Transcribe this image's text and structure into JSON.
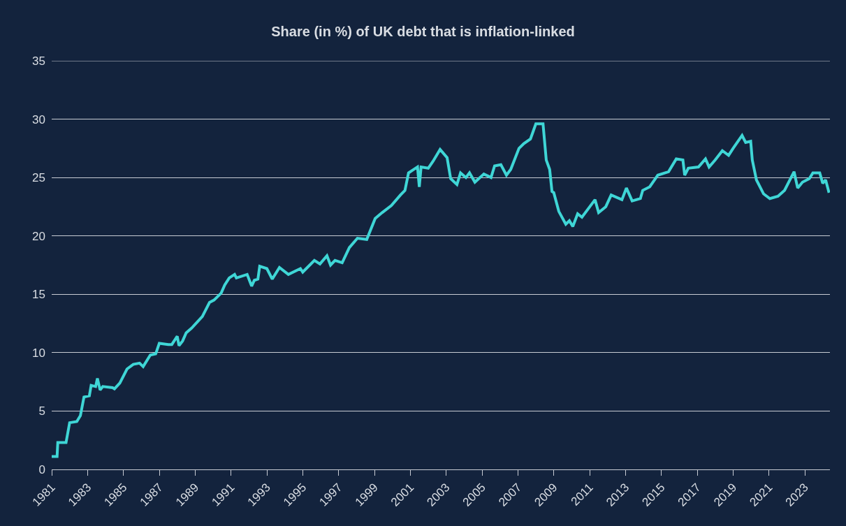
{
  "chart_data": {
    "type": "line",
    "title": "Share (in %) of UK debt that is inflation-linked",
    "x": [
      1981.0,
      1981.3,
      1981.34,
      1981.8,
      1982.0,
      1982.4,
      1982.6,
      1982.8,
      1983.1,
      1983.2,
      1983.45,
      1983.55,
      1983.7,
      1983.85,
      1984.4,
      1984.5,
      1984.8,
      1985.2,
      1985.55,
      1985.9,
      1986.1,
      1986.5,
      1986.8,
      1987.0,
      1987.5,
      1987.7,
      1988.0,
      1988.1,
      1988.3,
      1988.5,
      1988.8,
      1989.4,
      1989.8,
      1990.05,
      1990.45,
      1990.65,
      1990.9,
      1991.2,
      1991.3,
      1991.9,
      1992.15,
      1992.3,
      1992.5,
      1992.6,
      1993.0,
      1993.3,
      1993.7,
      1994.2,
      1994.87,
      1995.0,
      1995.65,
      1995.96,
      1996.35,
      1996.55,
      1996.8,
      1997.2,
      1997.6,
      1998.05,
      1998.57,
      1999.04,
      1999.43,
      1999.94,
      2000.45,
      2000.7,
      2000.9,
      2001.2,
      2001.4,
      2001.5,
      2001.6,
      2002.0,
      2002.27,
      2002.66,
      2003.05,
      2003.25,
      2003.6,
      2003.8,
      2004.1,
      2004.3,
      2004.6,
      2005.1,
      2005.5,
      2005.7,
      2006.05,
      2006.36,
      2006.6,
      2007.06,
      2007.33,
      2007.7,
      2008.0,
      2008.4,
      2008.58,
      2008.77,
      2008.9,
      2009.0,
      2009.28,
      2009.67,
      2009.87,
      2010.06,
      2010.33,
      2010.57,
      2011.3,
      2011.5,
      2011.9,
      2012.2,
      2012.8,
      2013.05,
      2013.37,
      2013.83,
      2013.96,
      2014.35,
      2014.8,
      2015.4,
      2015.83,
      2016.2,
      2016.3,
      2016.5,
      2017.07,
      2017.46,
      2017.66,
      2018.0,
      2018.4,
      2018.75,
      2019.0,
      2019.5,
      2019.7,
      2019.98,
      2020.07,
      2020.3,
      2020.7,
      2021.05,
      2021.5,
      2021.87,
      2022.4,
      2022.6,
      2022.87,
      2023.25,
      2023.45,
      2023.83,
      2024.0,
      2024.16,
      2024.35
    ],
    "series": [
      {
        "color": "#3fd6d6",
        "values": [
          1.1,
          1.1,
          2.3,
          2.3,
          4.0,
          4.1,
          4.6,
          6.2,
          6.3,
          7.2,
          7.1,
          7.8,
          6.8,
          7.1,
          7.0,
          6.9,
          7.4,
          8.6,
          9.0,
          9.1,
          8.8,
          9.8,
          9.9,
          10.8,
          10.7,
          10.7,
          11.4,
          10.6,
          11.0,
          11.7,
          12.1,
          13.1,
          14.3,
          14.5,
          15.1,
          15.8,
          16.4,
          16.7,
          16.4,
          16.7,
          15.7,
          16.2,
          16.3,
          17.4,
          17.2,
          16.3,
          17.3,
          16.7,
          17.2,
          16.9,
          17.9,
          17.6,
          18.3,
          17.5,
          17.9,
          17.7,
          19.0,
          19.8,
          19.7,
          21.5,
          22.0,
          22.6,
          23.5,
          23.9,
          25.4,
          25.7,
          25.9,
          24.2,
          25.9,
          25.8,
          26.4,
          27.4,
          26.7,
          24.9,
          24.4,
          25.4,
          25.0,
          25.4,
          24.6,
          25.3,
          25.0,
          26.0,
          26.1,
          25.2,
          25.7,
          27.5,
          27.9,
          28.3,
          29.6,
          29.6,
          26.5,
          25.7,
          23.8,
          23.7,
          22.1,
          21.0,
          21.3,
          20.8,
          21.9,
          21.6,
          23.1,
          22.0,
          22.5,
          23.5,
          23.1,
          24.1,
          23.0,
          23.2,
          23.9,
          24.2,
          25.2,
          25.5,
          26.6,
          26.5,
          25.2,
          25.8,
          25.9,
          26.6,
          25.9,
          26.5,
          27.3,
          26.9,
          27.5,
          28.6,
          28.0,
          28.1,
          26.5,
          24.8,
          23.6,
          23.2,
          23.4,
          23.9,
          25.5,
          24.1,
          24.6,
          24.9,
          25.4,
          25.4,
          24.5,
          24.8,
          23.7
        ]
      }
    ],
    "xlim": [
      1981,
      2024.4
    ],
    "xticks": [
      1981,
      1983,
      1985,
      1987,
      1989,
      1991,
      1993,
      1995,
      1997,
      1999,
      2001,
      2003,
      2005,
      2007,
      2009,
      2011,
      2013,
      2015,
      2017,
      2019,
      2021,
      2023
    ],
    "ylim": [
      0,
      35
    ],
    "yticks": [
      0,
      5,
      10,
      15,
      20,
      25,
      30,
      35
    ],
    "grid": "y",
    "marker": "none",
    "line_style": "solid"
  }
}
